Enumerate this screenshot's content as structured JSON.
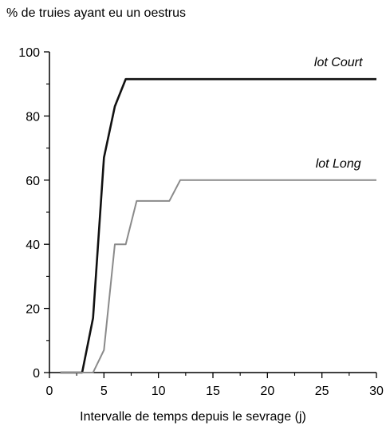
{
  "chart_data": {
    "type": "line",
    "ylabel": "% de truies ayant eu un oestrus",
    "xlabel": "Intervalle de temps depuis le sevrage (j)",
    "xlim": [
      0,
      30
    ],
    "ylim": [
      0,
      100
    ],
    "xticks": [
      0,
      5,
      10,
      15,
      20,
      25,
      30
    ],
    "yticks": [
      0,
      20,
      40,
      60,
      80,
      100
    ],
    "grid": false,
    "series": [
      {
        "name": "lot Court",
        "color": "#111111",
        "x": [
          1,
          3,
          4,
          5,
          6,
          7,
          30
        ],
        "y": [
          0,
          0,
          17,
          67,
          83,
          91.5,
          91.5
        ]
      },
      {
        "name": "lot Long",
        "color": "#8a8a8a",
        "x": [
          1,
          4,
          5,
          6,
          7,
          8,
          11,
          12,
          30
        ],
        "y": [
          0,
          0,
          7,
          40,
          40,
          53.5,
          53.5,
          60,
          60
        ]
      }
    ]
  }
}
